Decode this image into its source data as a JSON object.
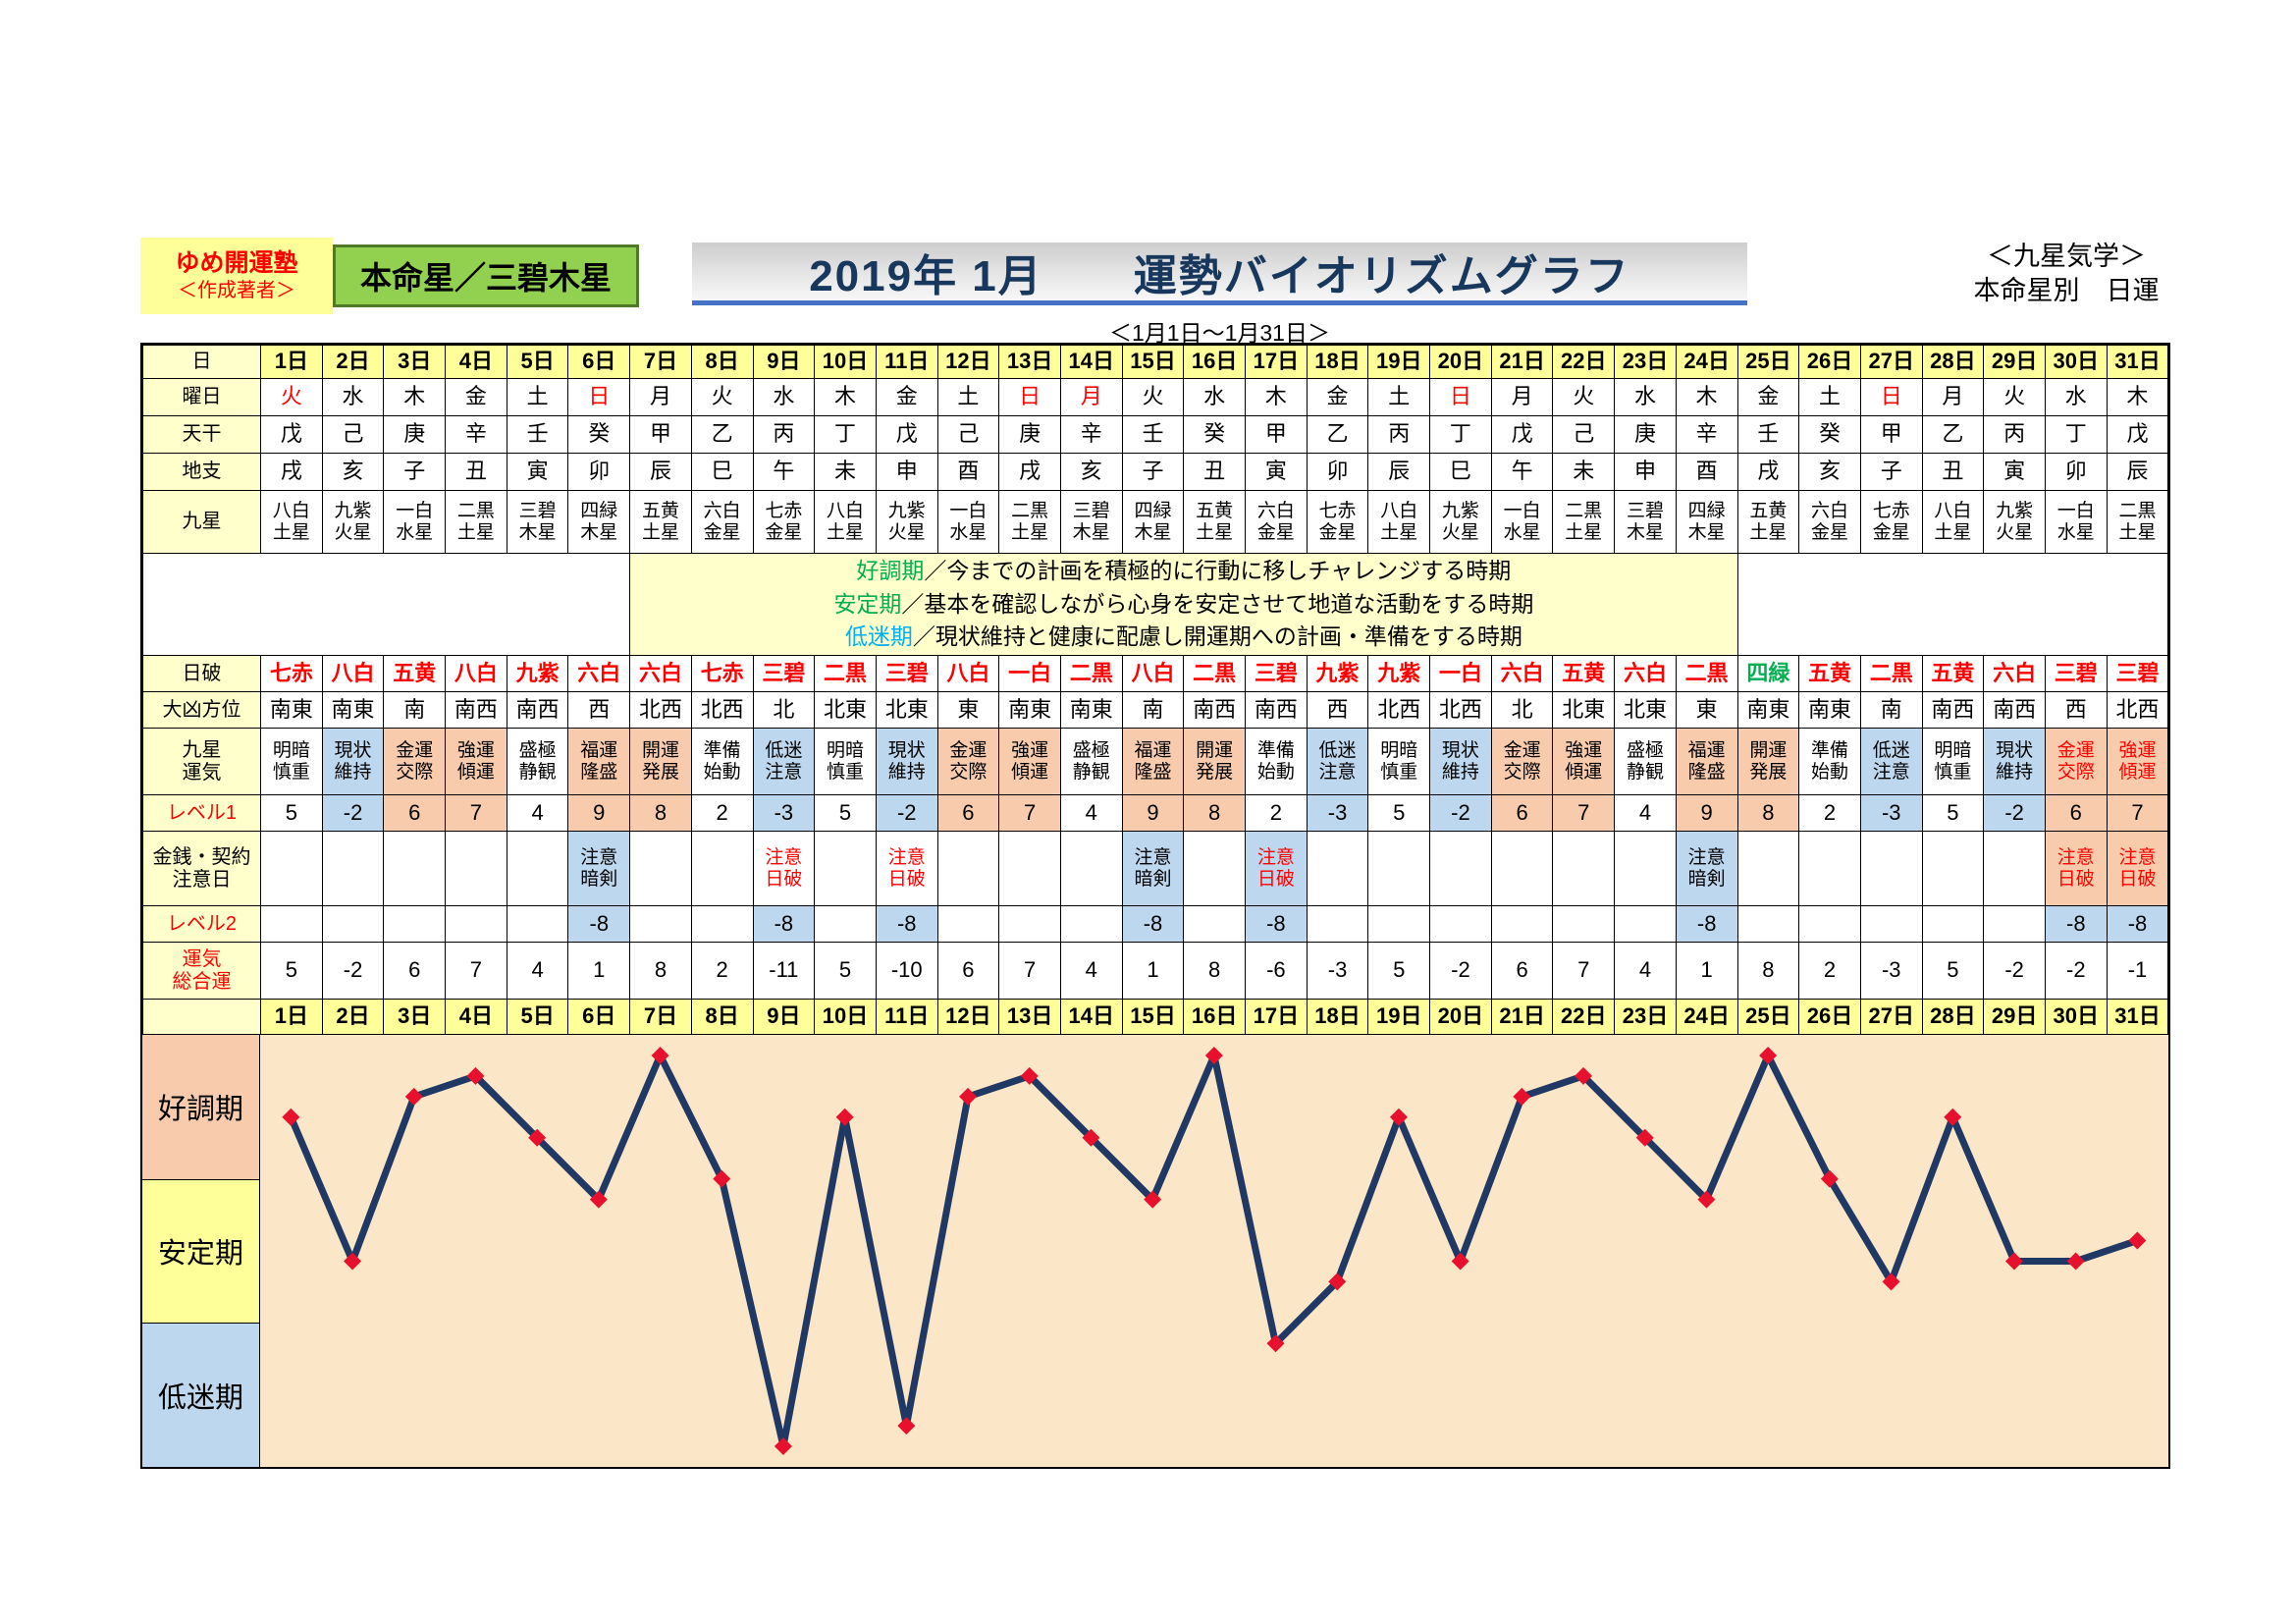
{
  "colors": {
    "red": "#FF0000",
    "green": "#00B050",
    "pink": "#F8CBAD",
    "blue": "#BDD7EE",
    "yellow": "#FFFF99",
    "label_bg": "#FFFFCC",
    "plot_bg": "#FBE7C7",
    "line": "#1F3864",
    "marker": "#E8112D"
  },
  "header": {
    "author_box": {
      "line1": "ゆめ開運塾",
      "line2": "＜作成著者＞"
    },
    "honmei_box": "本命星／三碧木星",
    "title": "2019年 1月　　運勢バイオリズムグラフ",
    "subtitle": "＜1月1日～1月31日＞",
    "kigaku": {
      "line1": "＜九星気学＞",
      "line2": "本命星別　日運"
    }
  },
  "legend": [
    {
      "term": "好調期",
      "color": "#00B050",
      "text": "／今までの計画を積極的に行動に移しチャレンジする時期"
    },
    {
      "term": "安定期",
      "color": "#00B050",
      "text": "／基本を確認しながら心身を安定させて地道な活動をする時期"
    },
    {
      "term": "低迷期",
      "color": "#00B0F0",
      "text": "／現状維持と健康に配慮し開運期への計画・準備をする時期"
    }
  ],
  "table": {
    "rows": [
      {
        "id": "day-header",
        "label": "日",
        "h": 34,
        "rowBg": "Y",
        "bold": true,
        "values": [
          "1日",
          "2日",
          "3日",
          "4日",
          "5日",
          "6日",
          "7日",
          "8日",
          "9日",
          "10日",
          "11日",
          "12日",
          "13日",
          "14日",
          "15日",
          "16日",
          "17日",
          "18日",
          "19日",
          "20日",
          "21日",
          "22日",
          "23日",
          "24日",
          "25日",
          "26日",
          "27日",
          "28日",
          "29日",
          "30日",
          "31日"
        ]
      },
      {
        "id": "weekday",
        "label": "曜日",
        "h": 38,
        "values": [
          "火",
          "水",
          "木",
          "金",
          "土",
          "日",
          "月",
          "火",
          "水",
          "木",
          "金",
          "土",
          "日",
          "月",
          "火",
          "水",
          "木",
          "金",
          "土",
          "日",
          "月",
          "火",
          "水",
          "木",
          "金",
          "土",
          "日",
          "月",
          "火",
          "水",
          "木"
        ],
        "fg": {
          "1": "R",
          "6": "R",
          "13": "R",
          "14": "R",
          "20": "R",
          "27": "R"
        }
      },
      {
        "id": "tenkan",
        "label": "天干",
        "h": 38,
        "values": [
          "戊",
          "己",
          "庚",
          "辛",
          "壬",
          "癸",
          "甲",
          "乙",
          "丙",
          "丁",
          "戊",
          "己",
          "庚",
          "辛",
          "壬",
          "癸",
          "甲",
          "乙",
          "丙",
          "丁",
          "戊",
          "己",
          "庚",
          "辛",
          "壬",
          "癸",
          "甲",
          "乙",
          "丙",
          "丁",
          "戊"
        ]
      },
      {
        "id": "chishi",
        "label": "地支",
        "h": 38,
        "values": [
          "戌",
          "亥",
          "子",
          "丑",
          "寅",
          "卯",
          "辰",
          "巳",
          "午",
          "未",
          "申",
          "酉",
          "戌",
          "亥",
          "子",
          "丑",
          "寅",
          "卯",
          "辰",
          "巳",
          "午",
          "未",
          "申",
          "酉",
          "戌",
          "亥",
          "子",
          "丑",
          "寅",
          "卯",
          "辰"
        ]
      },
      {
        "id": "kyusei",
        "label": "九星",
        "h": 64,
        "fs": 19,
        "values": [
          "八白\n土星",
          "九紫\n火星",
          "一白\n水星",
          "二黒\n土星",
          "三碧\n木星",
          "四緑\n木星",
          "五黄\n土星",
          "六白\n金星",
          "七赤\n金星",
          "八白\n土星",
          "九紫\n火星",
          "一白\n水星",
          "二黒\n土星",
          "三碧\n木星",
          "四緑\n木星",
          "五黄\n土星",
          "六白\n金星",
          "七赤\n金星",
          "八白\n土星",
          "九紫\n火星",
          "一白\n水星",
          "二黒\n土星",
          "三碧\n木星",
          "四緑\n木星",
          "五黄\n土星",
          "六白\n金星",
          "七赤\n金星",
          "八白\n土星",
          "九紫\n火星",
          "一白\n水星",
          "二黒\n土星"
        ]
      },
      {
        "id": "legend-row",
        "type": "legend",
        "h": 104
      },
      {
        "id": "nippa",
        "label": "日破",
        "h": 37,
        "rowFg": "R",
        "bold": true,
        "values": [
          "七赤",
          "八白",
          "五黄",
          "八白",
          "九紫",
          "六白",
          "六白",
          "七赤",
          "三碧",
          "二黒",
          "三碧",
          "八白",
          "一白",
          "二黒",
          "八白",
          "二黒",
          "三碧",
          "九紫",
          "九紫",
          "一白",
          "六白",
          "五黄",
          "六白",
          "二黒",
          "四緑",
          "五黄",
          "二黒",
          "五黄",
          "六白",
          "三碧",
          "三碧"
        ],
        "fg": {
          "25": "G"
        }
      },
      {
        "id": "daikyo-hoi",
        "label": "大凶方位",
        "h": 37,
        "values": [
          "南東",
          "南東",
          "南",
          "南西",
          "南西",
          "西",
          "北西",
          "北西",
          "北",
          "北東",
          "北東",
          "東",
          "南東",
          "南東",
          "南",
          "南西",
          "南西",
          "西",
          "北西",
          "北西",
          "北",
          "北東",
          "北東",
          "東",
          "南東",
          "南東",
          "南",
          "南西",
          "南西",
          "西",
          "北西"
        ]
      },
      {
        "id": "kyusei-unki",
        "label": "九星\n運気",
        "h": 68,
        "fs": 19,
        "values": [
          "明暗\n慎重",
          "現状\n維持",
          "金運\n交際",
          "強運\n傾運",
          "盛極\n静観",
          "福運\n隆盛",
          "開運\n発展",
          "準備\n始動",
          "低迷\n注意",
          "明暗\n慎重",
          "現状\n維持",
          "金運\n交際",
          "強運\n傾運",
          "盛極\n静観",
          "福運\n隆盛",
          "開運\n発展",
          "準備\n始動",
          "低迷\n注意",
          "明暗\n慎重",
          "現状\n維持",
          "金運\n交際",
          "強運\n傾運",
          "盛極\n静観",
          "福運\n隆盛",
          "開運\n発展",
          "準備\n始動",
          "低迷\n注意",
          "明暗\n慎重",
          "現状\n維持",
          "金運\n交際",
          "強運\n傾運"
        ],
        "bg": {
          "2": "B",
          "9": "B",
          "11": "B",
          "18": "B",
          "20": "B",
          "27": "B",
          "29": "B",
          "3": "P",
          "4": "P",
          "6": "P",
          "7": "P",
          "12": "P",
          "13": "P",
          "15": "P",
          "16": "P",
          "21": "P",
          "22": "P",
          "24": "P",
          "25": "P",
          "30": "P",
          "31": "P"
        },
        "fg": {
          "30": "R",
          "31": "R"
        }
      },
      {
        "id": "level1",
        "label": "レベル1",
        "labelFg": "R",
        "h": 37,
        "values": [
          5,
          -2,
          6,
          7,
          4,
          9,
          8,
          2,
          -3,
          5,
          -2,
          6,
          7,
          4,
          9,
          8,
          2,
          -3,
          5,
          -2,
          6,
          7,
          4,
          9,
          8,
          2,
          -3,
          5,
          -2,
          6,
          7
        ],
        "bg": {
          "2": "B",
          "9": "B",
          "11": "B",
          "18": "B",
          "20": "B",
          "27": "B",
          "29": "B",
          "3": "P",
          "4": "P",
          "6": "P",
          "7": "P",
          "12": "P",
          "13": "P",
          "15": "P",
          "16": "P",
          "21": "P",
          "22": "P",
          "24": "P",
          "25": "P",
          "30": "P",
          "31": "P"
        }
      },
      {
        "id": "kinsen-chuui",
        "label": "金銭・契約\n注意日",
        "h": 76,
        "fs": 19,
        "values": [
          "",
          "",
          "",
          "",
          "",
          "注意\n暗剣",
          "",
          "",
          "注意\n日破",
          "",
          "注意\n日破",
          "",
          "",
          "",
          "注意\n暗剣",
          "",
          "注意\n日破",
          "",
          "",
          "",
          "",
          "",
          "",
          "注意\n暗剣",
          "",
          "",
          "",
          "",
          "",
          "注意\n日破",
          "注意\n日破"
        ],
        "fg": {
          "9": "R",
          "11": "R",
          "17": "R",
          "30": "R",
          "31": "R"
        },
        "bg": {
          "6": "B",
          "15": "B",
          "24": "B",
          "17": "B",
          "30": "P",
          "31": "P"
        }
      },
      {
        "id": "level2",
        "label": "レベル2",
        "labelFg": "R",
        "h": 37,
        "values": [
          "",
          "",
          "",
          "",
          "",
          -8,
          "",
          "",
          -8,
          "",
          -8,
          "",
          "",
          "",
          -8,
          "",
          -8,
          "",
          "",
          "",
          "",
          "",
          "",
          -8,
          "",
          "",
          "",
          "",
          "",
          -8,
          -8
        ],
        "bg": {
          "6": "B",
          "9": "B",
          "11": "B",
          "15": "B",
          "17": "B",
          "24": "B",
          "30": "B",
          "31": "B"
        }
      },
      {
        "id": "sogo-un",
        "label": "運気\n総合運",
        "labelFg": "R",
        "h": 58,
        "values": [
          5,
          -2,
          6,
          7,
          4,
          1,
          8,
          2,
          -11,
          5,
          -10,
          6,
          7,
          4,
          1,
          8,
          -6,
          -3,
          5,
          -2,
          6,
          7,
          4,
          1,
          8,
          2,
          -3,
          5,
          -2,
          -2,
          -1
        ]
      },
      {
        "id": "day-footer",
        "label": "",
        "h": 36,
        "rowBg": "Y",
        "bold": true,
        "values": [
          "1日",
          "2日",
          "3日",
          "4日",
          "5日",
          "6日",
          "7日",
          "8日",
          "9日",
          "10日",
          "11日",
          "12日",
          "13日",
          "14日",
          "15日",
          "16日",
          "17日",
          "18日",
          "19日",
          "20日",
          "21日",
          "22日",
          "23日",
          "24日",
          "25日",
          "26日",
          "27日",
          "28日",
          "29日",
          "30日",
          "31日"
        ]
      }
    ]
  },
  "chart_data": {
    "type": "line",
    "title": "2019年1月 運勢バイオリズムグラフ（運気総合運）",
    "categories": [
      "1日",
      "2日",
      "3日",
      "4日",
      "5日",
      "6日",
      "7日",
      "8日",
      "9日",
      "10日",
      "11日",
      "12日",
      "13日",
      "14日",
      "15日",
      "16日",
      "17日",
      "18日",
      "19日",
      "20日",
      "21日",
      "22日",
      "23日",
      "24日",
      "25日",
      "26日",
      "27日",
      "28日",
      "29日",
      "30日",
      "31日"
    ],
    "values": [
      5,
      -2,
      6,
      7,
      4,
      1,
      8,
      2,
      -11,
      5,
      -10,
      6,
      7,
      4,
      1,
      8,
      -6,
      -3,
      5,
      -2,
      6,
      7,
      4,
      1,
      8,
      2,
      -3,
      5,
      -2,
      -2,
      -1
    ],
    "ylim": [
      -12,
      9
    ],
    "grid": false,
    "legend_position": "none",
    "bands": [
      {
        "label": "好調期",
        "from": 2,
        "to": 9,
        "label_bg": "#F8CBAD"
      },
      {
        "label": "安定期",
        "from": -5,
        "to": 2,
        "label_bg": "#FFFF99"
      },
      {
        "label": "低迷期",
        "from": -12,
        "to": -5,
        "label_bg": "#BDD7EE"
      }
    ],
    "plot_bg": "#FBE7C7",
    "line_color": "#1F3864",
    "marker_color": "#E8112D",
    "marker_shape": "diamond"
  }
}
